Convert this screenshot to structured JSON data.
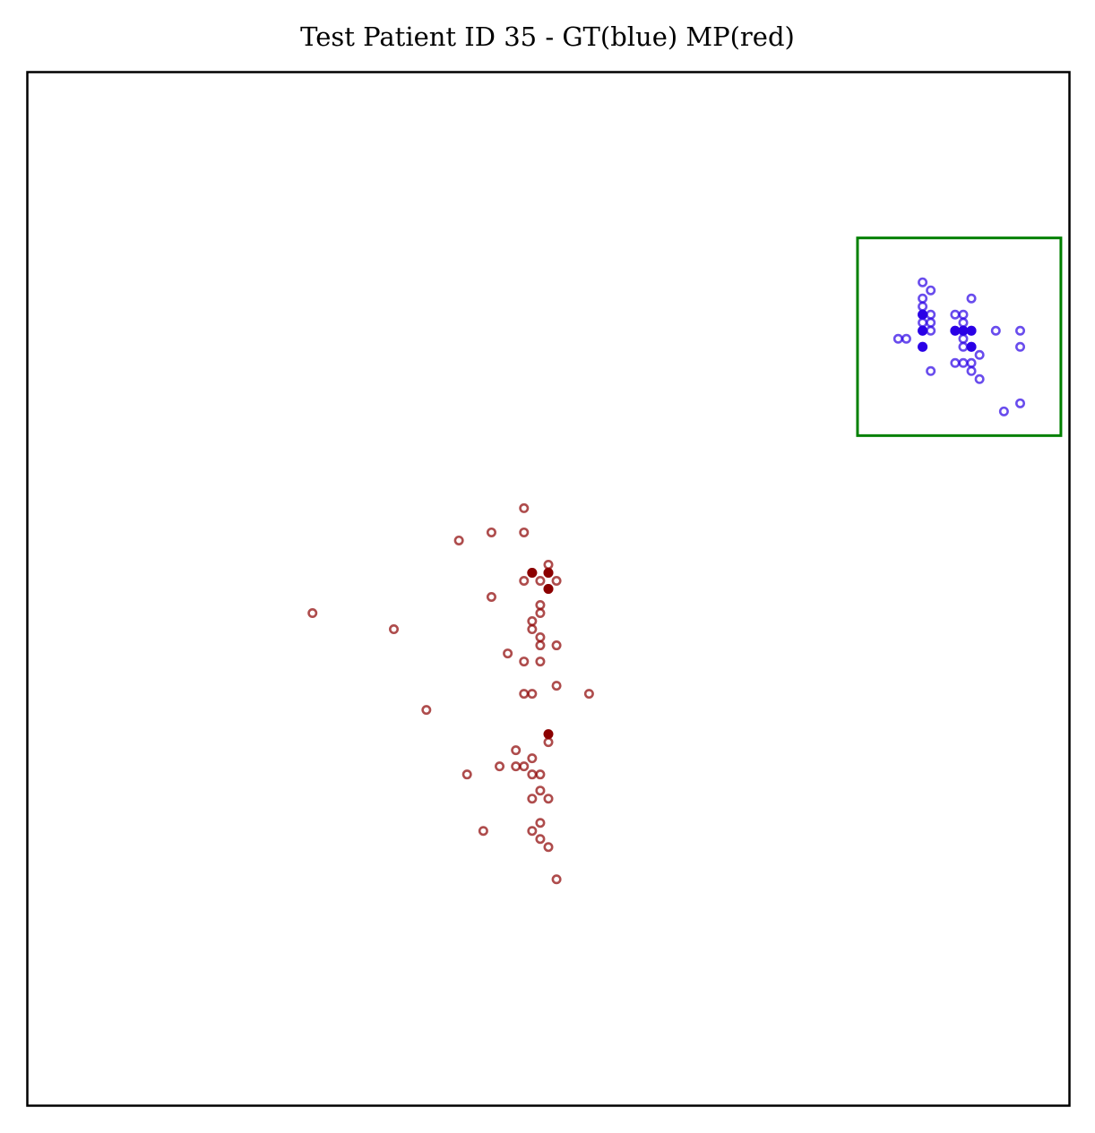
{
  "chart_data": {
    "type": "scatter",
    "title": "Test Patient ID 35 - GT(blue) MP(red)",
    "xlabel": "",
    "ylabel": "",
    "xlim": [
      0,
      128
    ],
    "ylim": [
      128,
      0
    ],
    "grid": false,
    "axis_ticks": false,
    "colors": {
      "mp": "#8b0000",
      "gt": "#2a00e6",
      "box": "#008000",
      "axes": "#000000"
    },
    "series": [
      {
        "marker_color": "#8b0000",
        "points": [
          [
            65,
            28
          ],
          [
            64,
            32
          ],
          [
            63,
            33
          ],
          [
            56,
            34
          ],
          [
            62,
            34
          ],
          [
            63,
            35
          ],
          [
            62,
            38
          ],
          [
            64,
            38
          ],
          [
            63,
            39
          ],
          [
            54,
            41
          ],
          [
            62,
            41
          ],
          [
            63,
            41
          ],
          [
            58,
            42
          ],
          [
            60,
            42
          ],
          [
            61,
            42
          ],
          [
            62,
            43
          ],
          [
            60,
            44
          ],
          [
            64,
            45
          ],
          [
            49,
            49
          ],
          [
            61,
            51
          ],
          [
            62,
            51
          ],
          [
            65,
            52
          ],
          [
            69,
            51
          ],
          [
            61,
            55
          ],
          [
            63,
            55
          ],
          [
            59,
            56
          ],
          [
            63,
            57
          ],
          [
            65,
            57
          ],
          [
            63,
            58
          ],
          [
            62,
            59
          ],
          [
            62,
            60
          ],
          [
            45,
            59
          ],
          [
            35,
            61
          ],
          [
            63,
            61
          ],
          [
            63,
            62
          ],
          [
            57,
            63
          ],
          [
            64,
            64
          ],
          [
            61,
            65
          ],
          [
            63,
            65
          ],
          [
            65,
            65
          ],
          [
            62,
            66
          ],
          [
            64,
            66
          ],
          [
            64,
            67
          ],
          [
            53,
            70
          ],
          [
            57,
            71
          ],
          [
            61,
            71
          ],
          [
            61,
            74
          ]
        ],
        "solid_points": [
          [
            64,
            46
          ],
          [
            64,
            64
          ],
          [
            62,
            66
          ],
          [
            64,
            66
          ]
        ]
      },
      {
        "marker_color": "#2a00e6",
        "points": [
          [
            120,
            86
          ],
          [
            122,
            87
          ],
          [
            117,
            90
          ],
          [
            111,
            91
          ],
          [
            116,
            91
          ],
          [
            114,
            92
          ],
          [
            115,
            92
          ],
          [
            116,
            92
          ],
          [
            117,
            93
          ],
          [
            115,
            94
          ],
          [
            116,
            94
          ],
          [
            110,
            94
          ],
          [
            107,
            95
          ],
          [
            108,
            95
          ],
          [
            115,
            95
          ],
          [
            110,
            96
          ],
          [
            111,
            96
          ],
          [
            114,
            96
          ],
          [
            115,
            96
          ],
          [
            116,
            96
          ],
          [
            119,
            96
          ],
          [
            122,
            96
          ],
          [
            122,
            94
          ],
          [
            110,
            97
          ],
          [
            111,
            97
          ],
          [
            115,
            97
          ],
          [
            110,
            98
          ],
          [
            111,
            98
          ],
          [
            114,
            98
          ],
          [
            115,
            98
          ],
          [
            110,
            99
          ],
          [
            110,
            100
          ],
          [
            116,
            100
          ],
          [
            111,
            101
          ],
          [
            110,
            102
          ]
        ],
        "solid_points": [
          [
            110,
            94
          ],
          [
            116,
            94
          ],
          [
            110,
            96
          ],
          [
            114,
            96
          ],
          [
            115,
            96
          ],
          [
            116,
            96
          ],
          [
            110,
            98
          ]
        ]
      }
    ],
    "annotation_box": {
      "x": [
        102,
        127
      ],
      "y": [
        83,
        107.5
      ],
      "color": "#008000"
    }
  }
}
